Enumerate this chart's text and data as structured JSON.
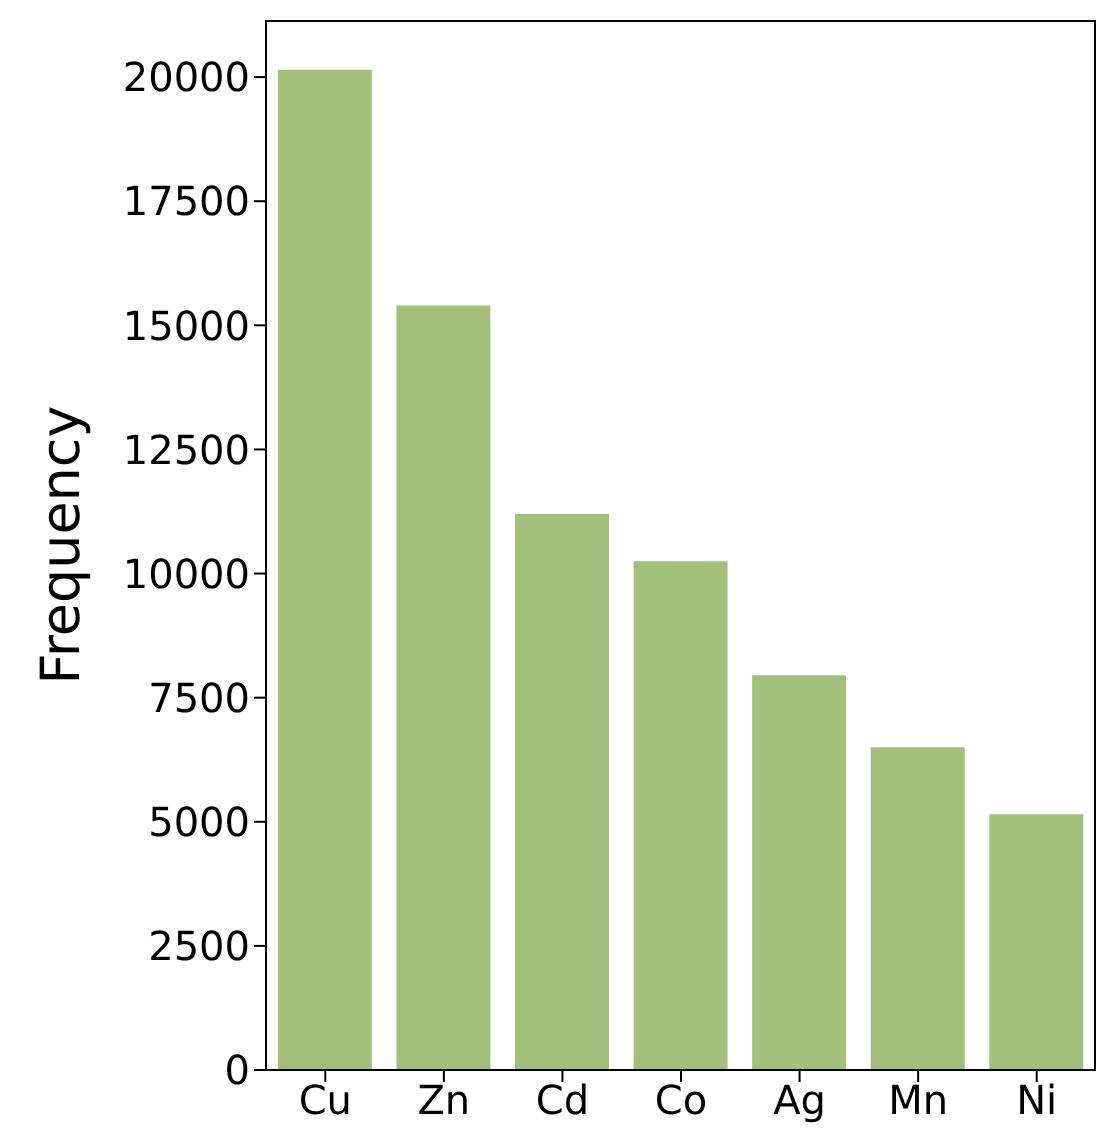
{
  "chart_data": {
    "type": "bar",
    "ylabel": "Frequency",
    "categories": [
      "Cu",
      "Zn",
      "Cd",
      "Co",
      "Ag",
      "Mn",
      "Ni"
    ],
    "values": [
      20150,
      15400,
      11200,
      10250,
      7950,
      6500,
      5150
    ],
    "color": "#a3c07a",
    "ylim": [
      0,
      21150
    ],
    "yticks": [
      0,
      2500,
      5000,
      7500,
      10000,
      12500,
      15000,
      17500,
      20000
    ],
    "grid": false,
    "legend": false
  }
}
